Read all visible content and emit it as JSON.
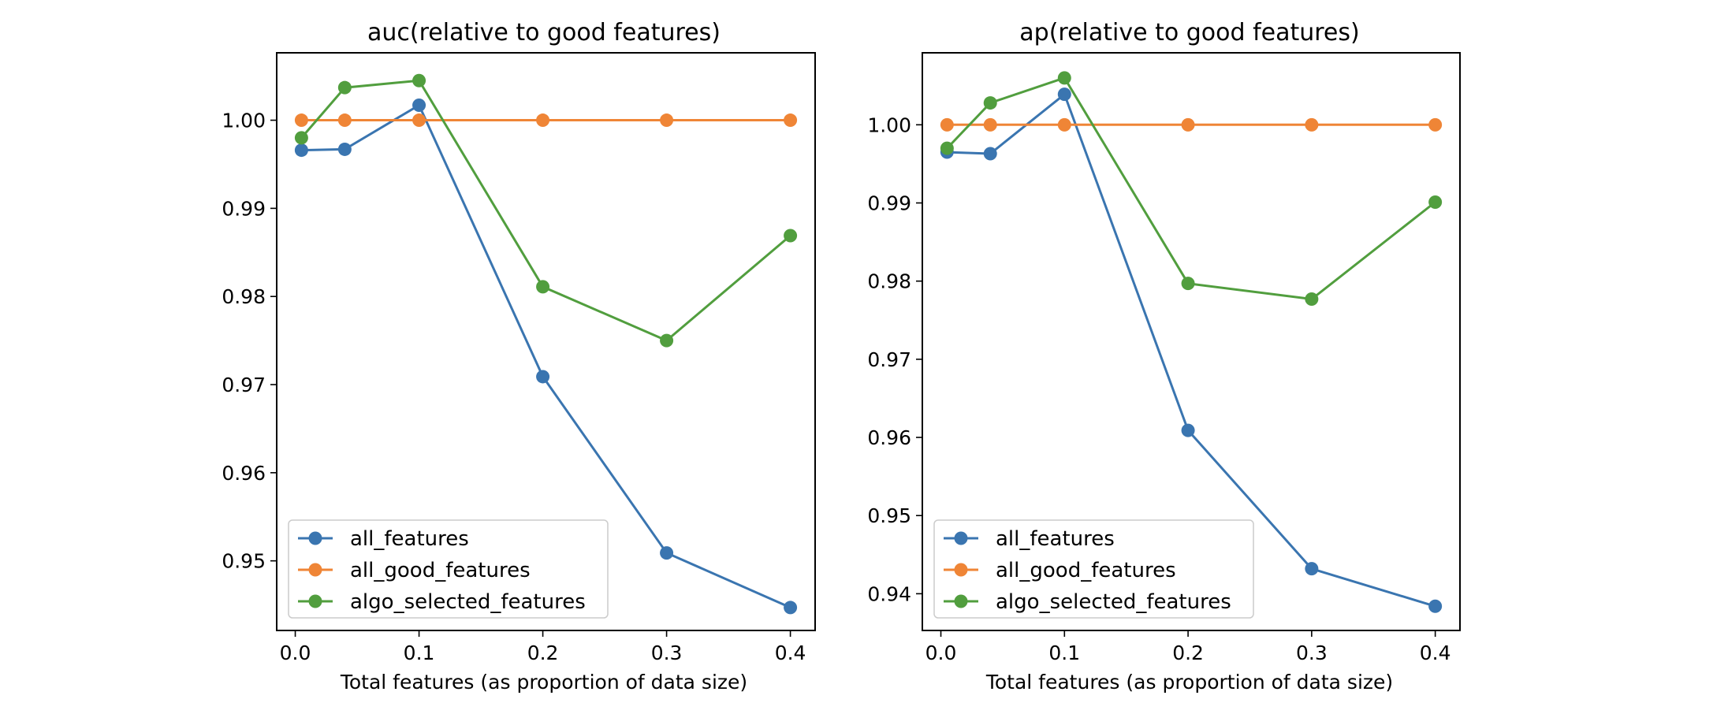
{
  "chart_data": [
    {
      "type": "line",
      "title": "auc(relative to good features)",
      "xlabel": "Total features (as proportion of data size)",
      "ylabel": "",
      "x": [
        0.005,
        0.04,
        0.1,
        0.2,
        0.3,
        0.4
      ],
      "xlim": [
        -0.015,
        0.42
      ],
      "ylim": [
        0.9421,
        1.00765
      ],
      "xticks": [
        0.0,
        0.1,
        0.2,
        0.3,
        0.4
      ],
      "xtick_labels": [
        "0.0",
        "0.1",
        "0.2",
        "0.3",
        "0.4"
      ],
      "yticks": [
        0.95,
        0.96,
        0.97,
        0.98,
        0.99,
        1.0
      ],
      "ytick_labels": [
        "0.95",
        "0.96",
        "0.97",
        "0.98",
        "0.99",
        "1.00"
      ],
      "grid": false,
      "legend_position": "lower-left",
      "series": [
        {
          "name": "all_features",
          "color": "#3a75b0",
          "values": [
            0.9966,
            0.9967,
            1.0017,
            0.9709,
            0.9509,
            0.9447
          ]
        },
        {
          "name": "all_good_features",
          "color": "#ef8536",
          "values": [
            1.0,
            1.0,
            1.0,
            1.0,
            1.0,
            1.0
          ]
        },
        {
          "name": "algo_selected_features",
          "color": "#519e3e",
          "values": [
            0.998,
            1.0037,
            1.0045,
            0.9811,
            0.975,
            0.9869
          ]
        }
      ]
    },
    {
      "type": "line",
      "title": "ap(relative to good features)",
      "xlabel": "Total features (as proportion of data size)",
      "ylabel": "",
      "x": [
        0.005,
        0.04,
        0.1,
        0.2,
        0.3,
        0.4
      ],
      "xlim": [
        -0.015,
        0.42
      ],
      "ylim": [
        0.9353,
        1.00921
      ],
      "xticks": [
        0.0,
        0.1,
        0.2,
        0.3,
        0.4
      ],
      "xtick_labels": [
        "0.0",
        "0.1",
        "0.2",
        "0.3",
        "0.4"
      ],
      "yticks": [
        0.94,
        0.95,
        0.96,
        0.97,
        0.98,
        0.99,
        1.0
      ],
      "ytick_labels": [
        "0.94",
        "0.95",
        "0.96",
        "0.97",
        "0.98",
        "0.99",
        "1.00"
      ],
      "grid": false,
      "legend_position": "lower-left",
      "series": [
        {
          "name": "all_features",
          "color": "#3a75b0",
          "values": [
            0.9965,
            0.9963,
            1.0039,
            0.9609,
            0.9432,
            0.9384
          ]
        },
        {
          "name": "all_good_features",
          "color": "#ef8536",
          "values": [
            1.0,
            1.0,
            1.0,
            1.0,
            1.0,
            1.0
          ]
        },
        {
          "name": "algo_selected_features",
          "color": "#519e3e",
          "values": [
            0.997,
            1.0028,
            1.006,
            0.9797,
            0.9777,
            0.9901
          ]
        }
      ]
    }
  ]
}
